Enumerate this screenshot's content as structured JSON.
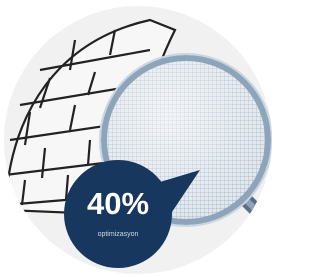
{
  "badge": {
    "value": "40%",
    "caption": "optimizasyon"
  }
}
